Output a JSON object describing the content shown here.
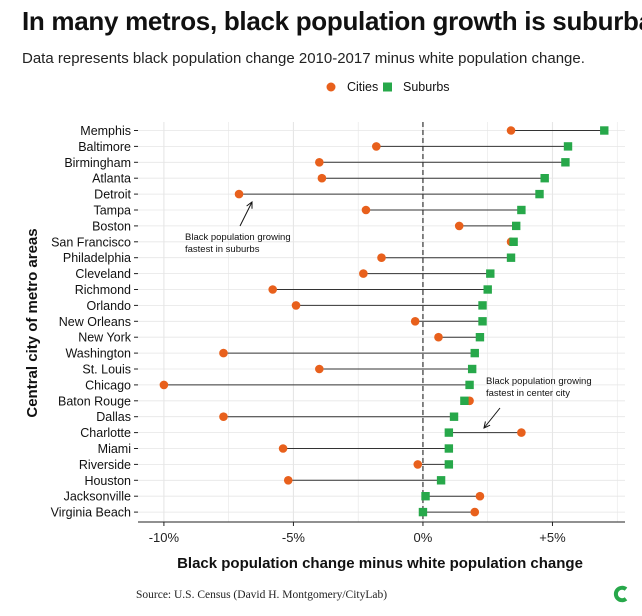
{
  "header": {
    "title": "In many metros, black population growth is suburban",
    "subtitle": "Data represents black population change 2010-2017 minus white population change."
  },
  "footer": {
    "source": "Source: U.S. Census (David H. Montgomery/CityLab)"
  },
  "colors": {
    "cities": "#e8601c",
    "suburbs": "#27a84a",
    "connector": "#333333",
    "grid": "#e6e6e6",
    "zero_line": "#222222"
  },
  "chart_data": {
    "type": "dumbbell",
    "xlabel": "Black population change minus white population change",
    "ylabel": "Central city of metro areas",
    "xlim": [
      -11.0,
      7.8
    ],
    "xticks": [
      -10,
      -5,
      0,
      5
    ],
    "xtick_labels": [
      "-10%",
      "-5%",
      "0%",
      "+5%"
    ],
    "grid": true,
    "zero_line": "dashed",
    "legend": {
      "position": "top",
      "items": [
        {
          "key": "cities",
          "label": "Cities",
          "marker": "circle"
        },
        {
          "key": "suburbs",
          "label": "Suburbs",
          "marker": "square"
        }
      ]
    },
    "categories": [
      "Memphis",
      "Baltimore",
      "Birmingham",
      "Atlanta",
      "Detroit",
      "Tampa",
      "Boston",
      "San Francisco",
      "Philadelphia",
      "Cleveland",
      "Richmond",
      "Orlando",
      "New Orleans",
      "New York",
      "Washington",
      "St. Louis",
      "Chicago",
      "Baton Rouge",
      "Dallas",
      "Charlotte",
      "Miami",
      "Riverside",
      "Houston",
      "Jacksonville",
      "Virginia Beach"
    ],
    "series": [
      {
        "name": "Cities",
        "values": [
          3.4,
          -1.8,
          -4.0,
          -3.9,
          -7.1,
          -2.2,
          1.4,
          3.4,
          -1.6,
          -2.3,
          -5.8,
          -4.9,
          -0.3,
          0.6,
          -7.7,
          -4.0,
          -10.0,
          1.8,
          -7.7,
          3.8,
          -5.4,
          -0.2,
          -5.2,
          2.2,
          2.0
        ]
      },
      {
        "name": "Suburbs",
        "values": [
          7.0,
          5.6,
          5.5,
          4.7,
          4.5,
          3.8,
          3.6,
          3.5,
          3.4,
          2.6,
          2.5,
          2.3,
          2.3,
          2.2,
          2.0,
          1.9,
          1.8,
          1.6,
          1.2,
          1.0,
          1.0,
          1.0,
          0.7,
          0.1,
          0.0
        ]
      }
    ],
    "annotations": [
      {
        "lines": [
          "Black population growing",
          "fastest in suburbs"
        ],
        "target": "Detroit"
      },
      {
        "lines": [
          "Black population growing",
          "fastest in center city"
        ],
        "target": "Charlotte"
      }
    ]
  }
}
